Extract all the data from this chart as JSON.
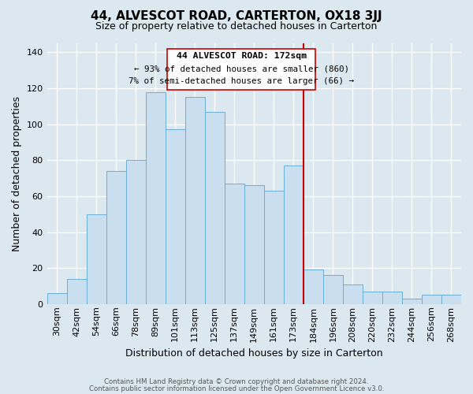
{
  "title": "44, ALVESCOT ROAD, CARTERTON, OX18 3JJ",
  "subtitle": "Size of property relative to detached houses in Carterton",
  "xlabel": "Distribution of detached houses by size in Carterton",
  "ylabel": "Number of detached properties",
  "footer_line1": "Contains HM Land Registry data © Crown copyright and database right 2024.",
  "footer_line2": "Contains public sector information licensed under the Open Government Licence v3.0.",
  "bin_labels": [
    "30sqm",
    "42sqm",
    "54sqm",
    "66sqm",
    "78sqm",
    "89sqm",
    "101sqm",
    "113sqm",
    "125sqm",
    "137sqm",
    "149sqm",
    "161sqm",
    "173sqm",
    "184sqm",
    "196sqm",
    "208sqm",
    "220sqm",
    "232sqm",
    "244sqm",
    "256sqm",
    "268sqm"
  ],
  "bar_values": [
    6,
    14,
    50,
    74,
    80,
    118,
    97,
    115,
    107,
    67,
    66,
    63,
    77,
    19,
    16,
    11,
    7,
    7,
    3,
    5,
    5
  ],
  "bar_color": "#c9dff0",
  "bar_edge_color": "#6aaed6",
  "vline_color": "#cc0000",
  "annotation_title": "44 ALVESCOT ROAD: 172sqm",
  "annotation_line1": "← 93% of detached houses are smaller (860)",
  "annotation_line2": "7% of semi-detached houses are larger (66) →",
  "ylim": [
    0,
    145
  ],
  "yticks": [
    0,
    20,
    40,
    60,
    80,
    100,
    120,
    140
  ],
  "background_color": "#dce8f0",
  "title_fontsize": 11,
  "subtitle_fontsize": 9,
  "ylabel_fontsize": 9,
  "xlabel_fontsize": 9,
  "tick_fontsize": 8,
  "footer_fontsize": 6.2
}
